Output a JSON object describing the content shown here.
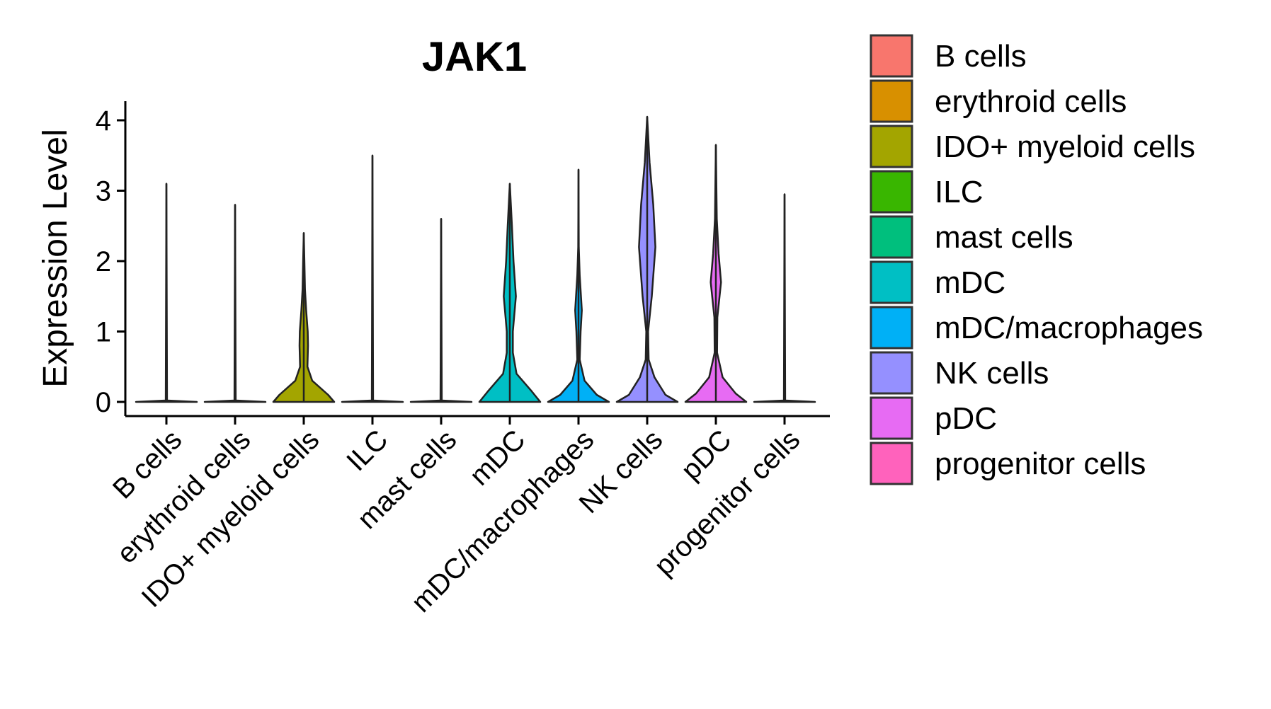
{
  "chart_data": {
    "type": "violin",
    "title": "JAK1",
    "xlabel": "",
    "ylabel": "Expression Level",
    "ylim": [
      -0.2,
      4.3
    ],
    "yticks": [
      0,
      1,
      2,
      3,
      4
    ],
    "categories": [
      "B cells",
      "erythroid cells",
      "IDO+ myeloid cells",
      "ILC",
      "mast cells",
      "mDC",
      "mDC/macrophages",
      "NK cells",
      "pDC",
      "progenitor cells"
    ],
    "colors": [
      "#F8766D",
      "#D89000",
      "#A3A500",
      "#39B600",
      "#00BF7D",
      "#00BFC4",
      "#00B0F6",
      "#9590FF",
      "#E76BF3",
      "#FF62BC"
    ],
    "max_values": [
      3.1,
      2.8,
      2.4,
      3.5,
      2.6,
      3.1,
      3.3,
      4.05,
      3.65,
      2.95
    ],
    "density_profiles": [
      [
        [
          0,
          1
        ],
        [
          0.02,
          0.02
        ],
        [
          3.1,
          0
        ]
      ],
      [
        [
          0,
          1
        ],
        [
          0.02,
          0.02
        ],
        [
          2.8,
          0
        ]
      ],
      [
        [
          0,
          1
        ],
        [
          0.1,
          0.8
        ],
        [
          0.3,
          0.28
        ],
        [
          0.5,
          0.12
        ],
        [
          0.8,
          0.14
        ],
        [
          1.0,
          0.13
        ],
        [
          1.3,
          0.08
        ],
        [
          1.6,
          0.04
        ],
        [
          2.0,
          0.02
        ],
        [
          2.4,
          0
        ]
      ],
      [
        [
          0,
          1
        ],
        [
          0.02,
          0.02
        ],
        [
          3.5,
          0
        ]
      ],
      [
        [
          0,
          1
        ],
        [
          0.02,
          0.02
        ],
        [
          2.6,
          0
        ]
      ],
      [
        [
          0,
          1
        ],
        [
          0.15,
          0.72
        ],
        [
          0.4,
          0.22
        ],
        [
          0.7,
          0.1
        ],
        [
          1.0,
          0.1
        ],
        [
          1.5,
          0.2
        ],
        [
          2.0,
          0.12
        ],
        [
          2.5,
          0.07
        ],
        [
          3.1,
          0
        ]
      ],
      [
        [
          0,
          1
        ],
        [
          0.1,
          0.6
        ],
        [
          0.3,
          0.2
        ],
        [
          0.6,
          0.04
        ],
        [
          1.0,
          0.07
        ],
        [
          1.3,
          0.11
        ],
        [
          1.8,
          0.04
        ],
        [
          2.2,
          0.01
        ],
        [
          3.3,
          0
        ]
      ],
      [
        [
          0,
          1
        ],
        [
          0.1,
          0.6
        ],
        [
          0.35,
          0.24
        ],
        [
          0.6,
          0.05
        ],
        [
          1.0,
          0.03
        ],
        [
          1.5,
          0.15
        ],
        [
          2.2,
          0.27
        ],
        [
          2.8,
          0.2
        ],
        [
          3.4,
          0.08
        ],
        [
          3.8,
          0.03
        ],
        [
          4.05,
          0
        ]
      ],
      [
        [
          0,
          1
        ],
        [
          0.12,
          0.65
        ],
        [
          0.35,
          0.22
        ],
        [
          0.7,
          0.04
        ],
        [
          1.2,
          0.05
        ],
        [
          1.7,
          0.17
        ],
        [
          2.1,
          0.09
        ],
        [
          2.6,
          0.03
        ],
        [
          3.65,
          0
        ]
      ],
      [
        [
          0,
          1
        ],
        [
          0.02,
          0.02
        ],
        [
          2.95,
          0
        ]
      ]
    ],
    "legend": {
      "position": "right",
      "entries": [
        "B cells",
        "erythroid cells",
        "IDO+ myeloid cells",
        "ILC",
        "mast cells",
        "mDC",
        "mDC/macrophages",
        "NK cells",
        "pDC",
        "progenitor cells"
      ]
    }
  }
}
